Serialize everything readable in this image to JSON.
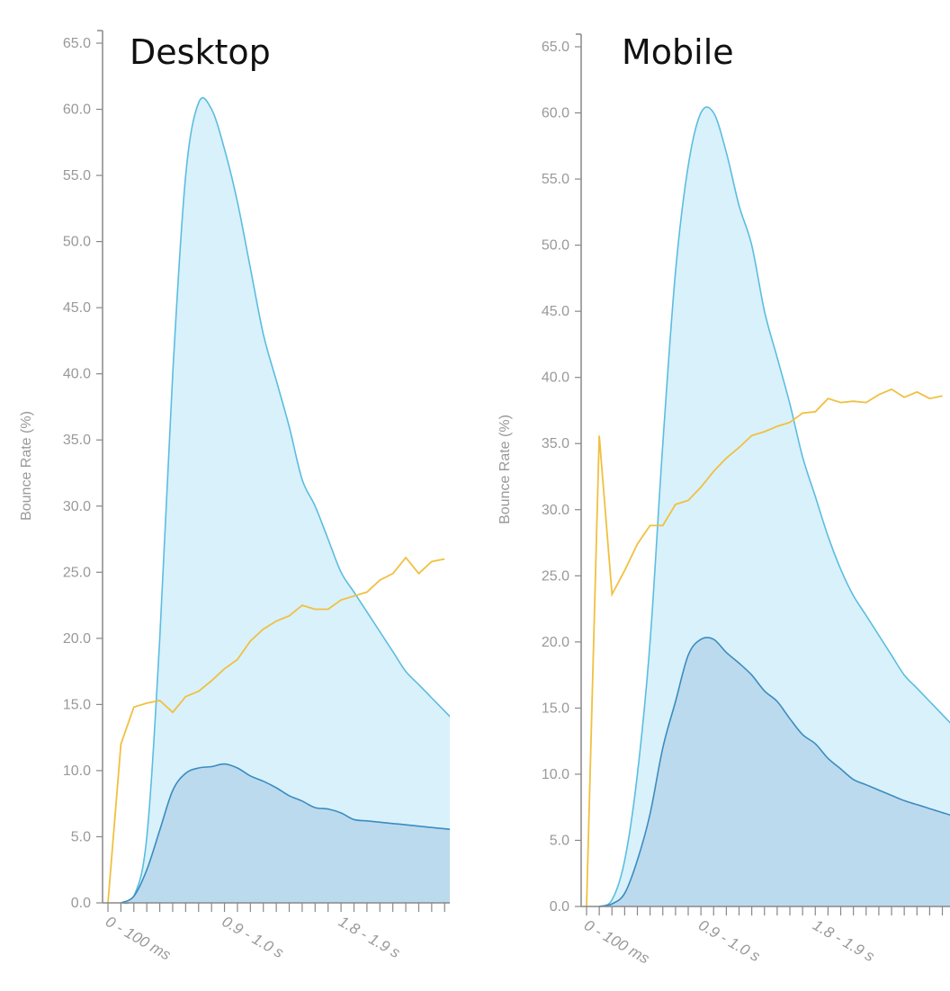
{
  "chart_data": [
    {
      "type": "area",
      "title": "Desktop",
      "xlabel": "",
      "ylabel": "Bounce Rate (%)",
      "ylim": [
        0,
        65
      ],
      "yticks": [
        "0.0",
        "5.0",
        "10.0",
        "15.0",
        "20.0",
        "25.0",
        "30.0",
        "35.0",
        "40.0",
        "45.0",
        "50.0",
        "55.0",
        "60.0",
        "65.0"
      ],
      "x_tick_labels": [
        {
          "index": 0,
          "label": "0 - 100 ms"
        },
        {
          "index": 9,
          "label": "0.9 - 1.0 s"
        },
        {
          "index": 18,
          "label": "1.8 - 1.9 s"
        }
      ],
      "x_visible_bins": 26.4,
      "colors": {
        "area_light": "#d9f1fb",
        "line_light": "#5bbde0",
        "area_dark": "#bcdaee",
        "line_dark": "#3b8cc0",
        "bounce_line": "#f0c040"
      },
      "series": [
        {
          "role": "light-area",
          "values": [
            0,
            0.5,
            5,
            20,
            40,
            55,
            60.5,
            60,
            57,
            53,
            48,
            43,
            39.5,
            36,
            32,
            30,
            27.5,
            25,
            23.5,
            22,
            20.5,
            19,
            17.5,
            16.5,
            15.5,
            14.5,
            13.5
          ]
        },
        {
          "role": "dark-area",
          "values": [
            0,
            0.5,
            2.5,
            5.5,
            8.5,
            9.8,
            10.2,
            10.3,
            10.5,
            10.2,
            9.6,
            9.2,
            8.7,
            8.1,
            7.7,
            7.2,
            7.1,
            6.8,
            6.3,
            6.2,
            6.1,
            6.0,
            5.9,
            5.8,
            5.7,
            5.6,
            5.5
          ]
        },
        {
          "role": "bounce-line",
          "values": [
            0,
            12,
            14.8,
            15.1,
            15.3,
            14.4,
            15.6,
            16,
            16.8,
            17.7,
            18.4,
            19.8,
            20.7,
            21.3,
            21.7,
            22.5,
            22.2,
            22.2,
            22.9,
            23.2,
            23.5,
            24.4,
            24.9,
            26.1,
            24.9,
            25.8,
            26
          ]
        }
      ]
    },
    {
      "type": "area",
      "title": "Mobile",
      "xlabel": "",
      "ylabel": "Bounce Rate (%)",
      "ylim": [
        0,
        65
      ],
      "yticks": [
        "0.0",
        "5.0",
        "10.0",
        "15.0",
        "20.0",
        "25.0",
        "30.0",
        "35.0",
        "40.0",
        "45.0",
        "50.0",
        "55.0",
        "60.0",
        "65.0"
      ],
      "x_tick_labels": [
        {
          "index": 0,
          "label": "0 - 100 ms"
        },
        {
          "index": 9,
          "label": "0.9 - 1.0 s"
        },
        {
          "index": 18,
          "label": "1.8 - 1.9 s"
        }
      ],
      "x_visible_bins": 28.6,
      "colors": {
        "area_light": "#d9f1fb",
        "line_light": "#5bbde0",
        "area_dark": "#bcdaee",
        "line_dark": "#3b8cc0",
        "bounce_line": "#f0c040"
      },
      "series": [
        {
          "role": "light-area",
          "values": [
            0,
            0.5,
            3.5,
            10,
            20,
            35,
            48,
            56,
            60,
            60,
            57,
            53,
            50,
            45,
            41.5,
            38,
            34,
            31,
            28,
            25.5,
            23.5,
            22,
            20.5,
            19,
            17.5,
            16.5,
            15.5,
            14.5,
            13.5
          ]
        },
        {
          "role": "dark-area",
          "values": [
            0,
            0.2,
            1,
            3.5,
            7,
            12,
            15.5,
            19,
            20.2,
            20.2,
            19.2,
            18.4,
            17.5,
            16.3,
            15.5,
            14.2,
            13,
            12.3,
            11.2,
            10.4,
            9.6,
            9.2,
            8.8,
            8.4,
            8.0,
            7.7,
            7.4,
            7.1,
            6.8
          ]
        },
        {
          "role": "bounce-line",
          "values": [
            0,
            35.6,
            23.6,
            25.4,
            27.4,
            28.8,
            28.8,
            30.4,
            30.7,
            31.7,
            32.9,
            33.9,
            34.7,
            35.6,
            35.9,
            36.3,
            36.6,
            37.3,
            37.4,
            38.4,
            38.1,
            38.2,
            38.1,
            38.7,
            39.1,
            38.5,
            38.9,
            38.4,
            38.6
          ]
        }
      ]
    }
  ]
}
